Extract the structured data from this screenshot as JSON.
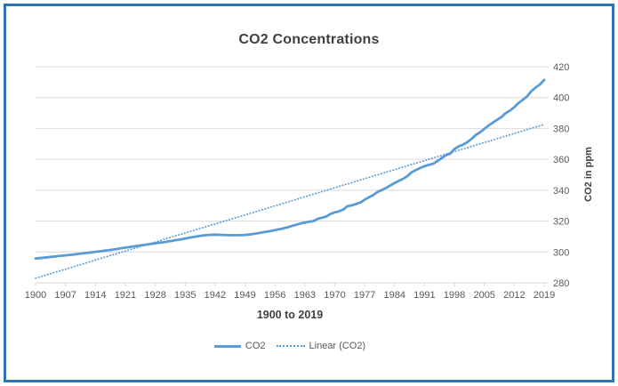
{
  "chart_data": {
    "type": "line",
    "title": "CO2 Concentrations",
    "xlabel": "1900 to 2019",
    "ylabel": "CO2 in ppm",
    "xlim": [
      1900,
      2019
    ],
    "ylim": [
      280,
      420
    ],
    "x_ticks": [
      1900,
      1907,
      1914,
      1921,
      1928,
      1935,
      1942,
      1949,
      1956,
      1963,
      1970,
      1977,
      1984,
      1991,
      1998,
      2005,
      2012,
      2019
    ],
    "y_ticks": [
      280,
      300,
      320,
      340,
      360,
      380,
      400,
      420
    ],
    "grid": "horizontal",
    "legend_position": "bottom",
    "series": [
      {
        "name": "CO2",
        "style": "solid",
        "color": "#5B9BD5",
        "x_start": 1900,
        "x_step": 1,
        "values": [
          295.7,
          296.0,
          296.3,
          296.6,
          296.9,
          297.2,
          297.5,
          297.8,
          298.1,
          298.4,
          298.7,
          299.0,
          299.4,
          299.7,
          300.1,
          300.4,
          300.8,
          301.1,
          301.5,
          301.9,
          302.4,
          302.8,
          303.2,
          303.6,
          304.0,
          304.4,
          304.8,
          305.2,
          305.6,
          306.0,
          306.3,
          306.8,
          307.2,
          307.7,
          308.2,
          308.7,
          309.2,
          309.7,
          310.2,
          310.6,
          310.9,
          311.1,
          311.2,
          311.1,
          311.0,
          310.9,
          310.8,
          310.8,
          310.9,
          311.0,
          311.3,
          311.7,
          312.1,
          312.6,
          313.1,
          313.6,
          314.1,
          314.7,
          315.3,
          316.0,
          316.9,
          317.6,
          318.5,
          319.0,
          319.6,
          320.0,
          321.4,
          322.2,
          323.0,
          324.6,
          325.7,
          326.3,
          327.5,
          329.7,
          330.2,
          331.1,
          332.0,
          333.8,
          335.4,
          336.8,
          338.8,
          340.1,
          341.5,
          343.1,
          344.7,
          346.1,
          347.4,
          349.2,
          351.6,
          353.1,
          354.4,
          355.6,
          356.4,
          357.1,
          358.8,
          360.8,
          362.6,
          363.7,
          366.7,
          368.4,
          369.5,
          371.1,
          373.2,
          375.8,
          377.5,
          379.8,
          381.9,
          383.8,
          385.6,
          387.4,
          389.9,
          391.6,
          393.8,
          396.5,
          398.6,
          400.8,
          404.2,
          406.5,
          408.5,
          411.4
        ]
      },
      {
        "name": "Linear (CO2)",
        "style": "dotted",
        "color": "#5B9BD5",
        "x": [
          1900,
          2019
        ],
        "values": [
          283.0,
          382.6
        ]
      }
    ]
  },
  "frame": {
    "border_color": "#2E74B5",
    "background": "#FFFFFF"
  },
  "styles": {
    "gridline_color": "#D9D9D9",
    "tick_label_color": "#595959",
    "title_color": "#404040",
    "axis_title_color": "#404040",
    "legend_text_color": "#595959"
  }
}
